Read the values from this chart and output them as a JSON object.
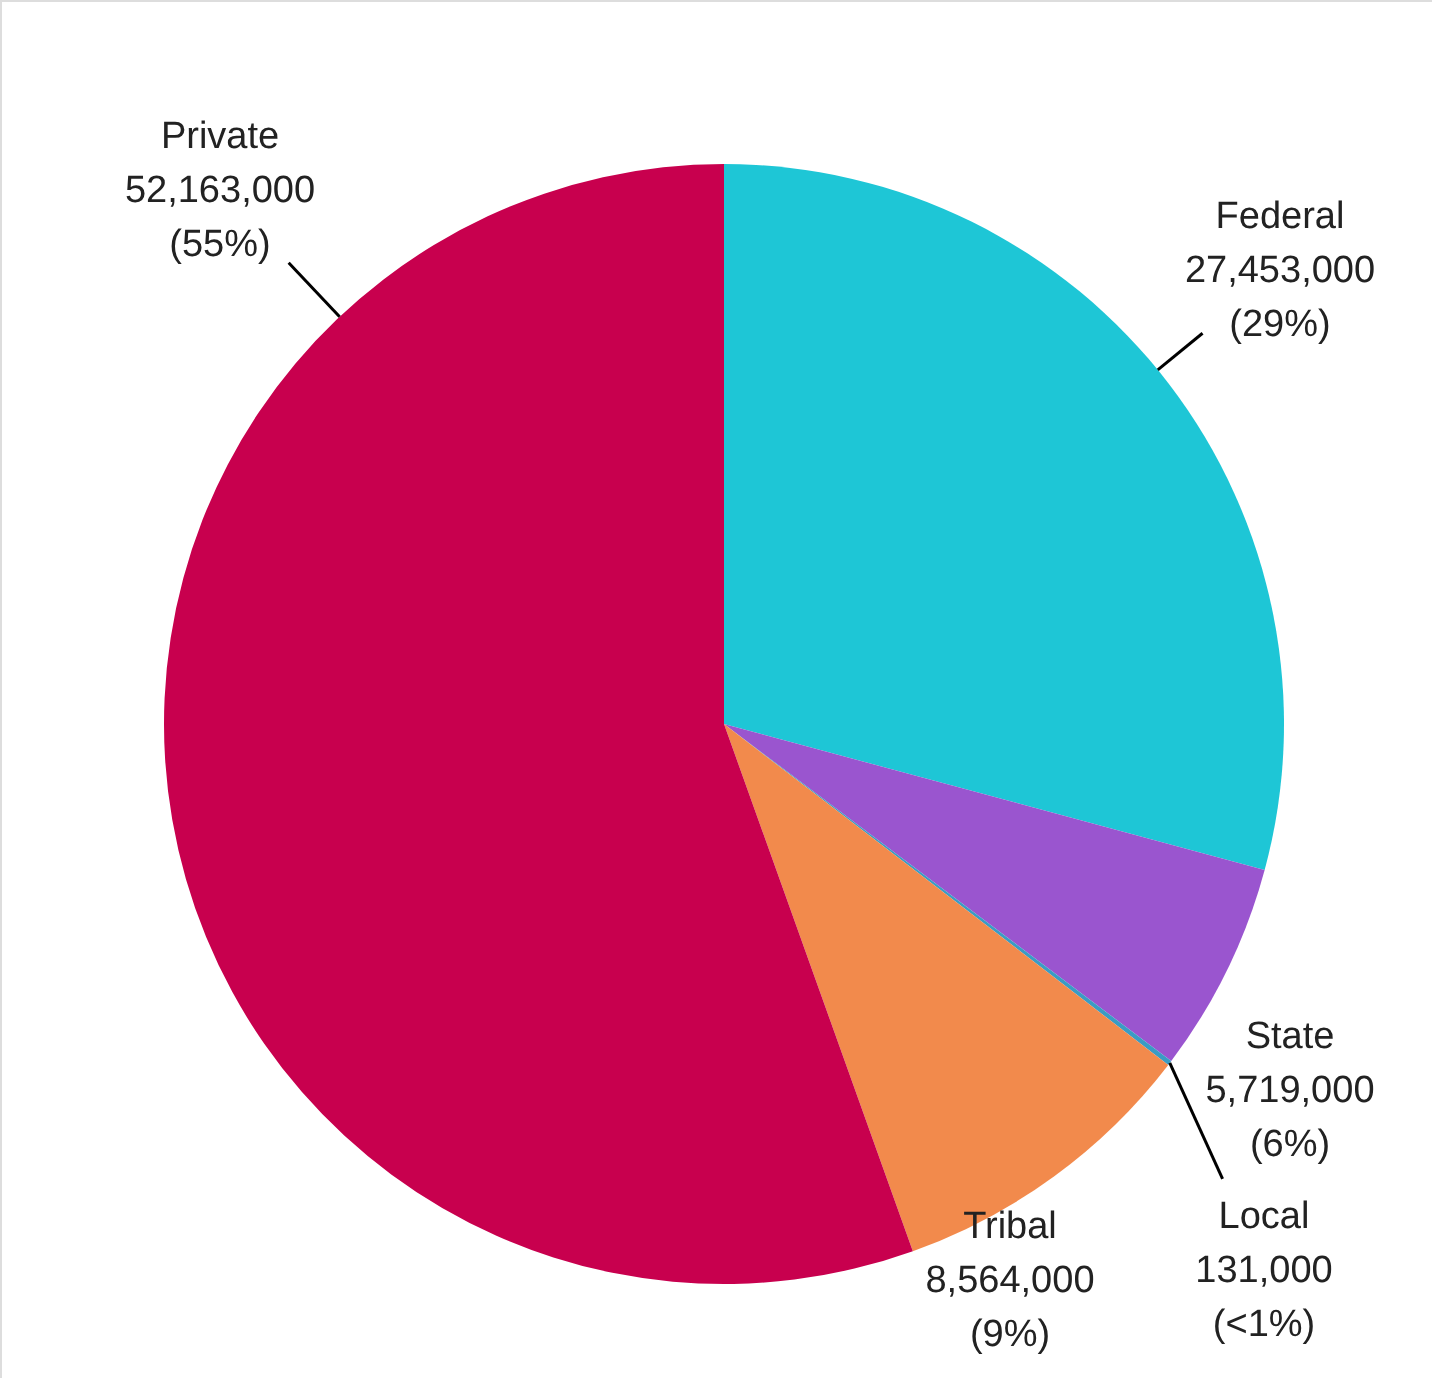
{
  "chart_data": {
    "type": "pie",
    "categories": [
      "Federal",
      "State",
      "Local",
      "Tribal",
      "Private"
    ],
    "values": [
      27453000,
      5719000,
      131000,
      8564000,
      52163000
    ],
    "colors": [
      "#1ec6d6",
      "#9a55cf",
      "#3a9cc4",
      "#f28a4c",
      "#c8004e"
    ],
    "value_labels": [
      "27,453,000 (29%)",
      "5,719,000 (6%)",
      "131,000 (<1%)",
      "8,564,000 (9%)",
      "52,163,000 (55%)"
    ]
  }
}
